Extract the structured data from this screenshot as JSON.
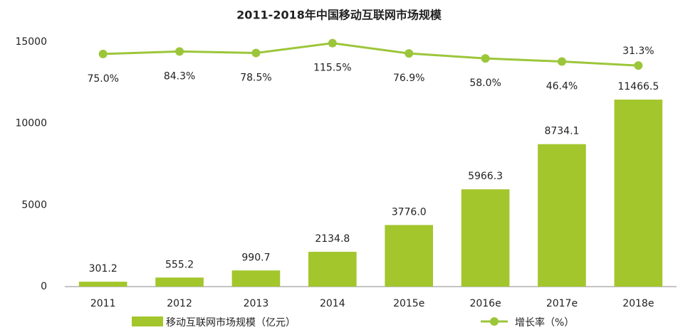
{
  "chart_data": {
    "type": "bar-line",
    "title": "2011-2018年中国移动互联网市场规模",
    "categories": [
      "2011",
      "2012",
      "2013",
      "2014",
      "2015e",
      "2016e",
      "2017e",
      "2018e"
    ],
    "series": [
      {
        "name": "移动互联网市场规模（亿元）",
        "type": "bar",
        "color": "#a3c62c",
        "values": [
          301.2,
          555.2,
          990.7,
          2134.8,
          3776.0,
          5966.3,
          8734.1,
          11466.5
        ],
        "value_labels": [
          "301.2",
          "555.2",
          "990.7",
          "2134.8",
          "3776.0",
          "5966.3",
          "8734.1",
          "11466.5"
        ]
      },
      {
        "name": "增长率（%）",
        "type": "line",
        "axis": "y2",
        "color": "#9cc63a",
        "values": [
          75.0,
          84.3,
          78.5,
          115.5,
          76.9,
          58.0,
          46.4,
          31.3
        ],
        "value_labels": [
          "75.0%",
          "84.3%",
          "78.5%",
          "115.5%",
          "76.9%",
          "58.0%",
          "46.4%",
          "31.3%"
        ]
      }
    ],
    "ylim": [
      0,
      15000
    ],
    "yticks": [
      0,
      5000,
      10000,
      15000
    ],
    "y2lim": [
      -800,
      120
    ],
    "grid": false,
    "legend": "bottom"
  }
}
